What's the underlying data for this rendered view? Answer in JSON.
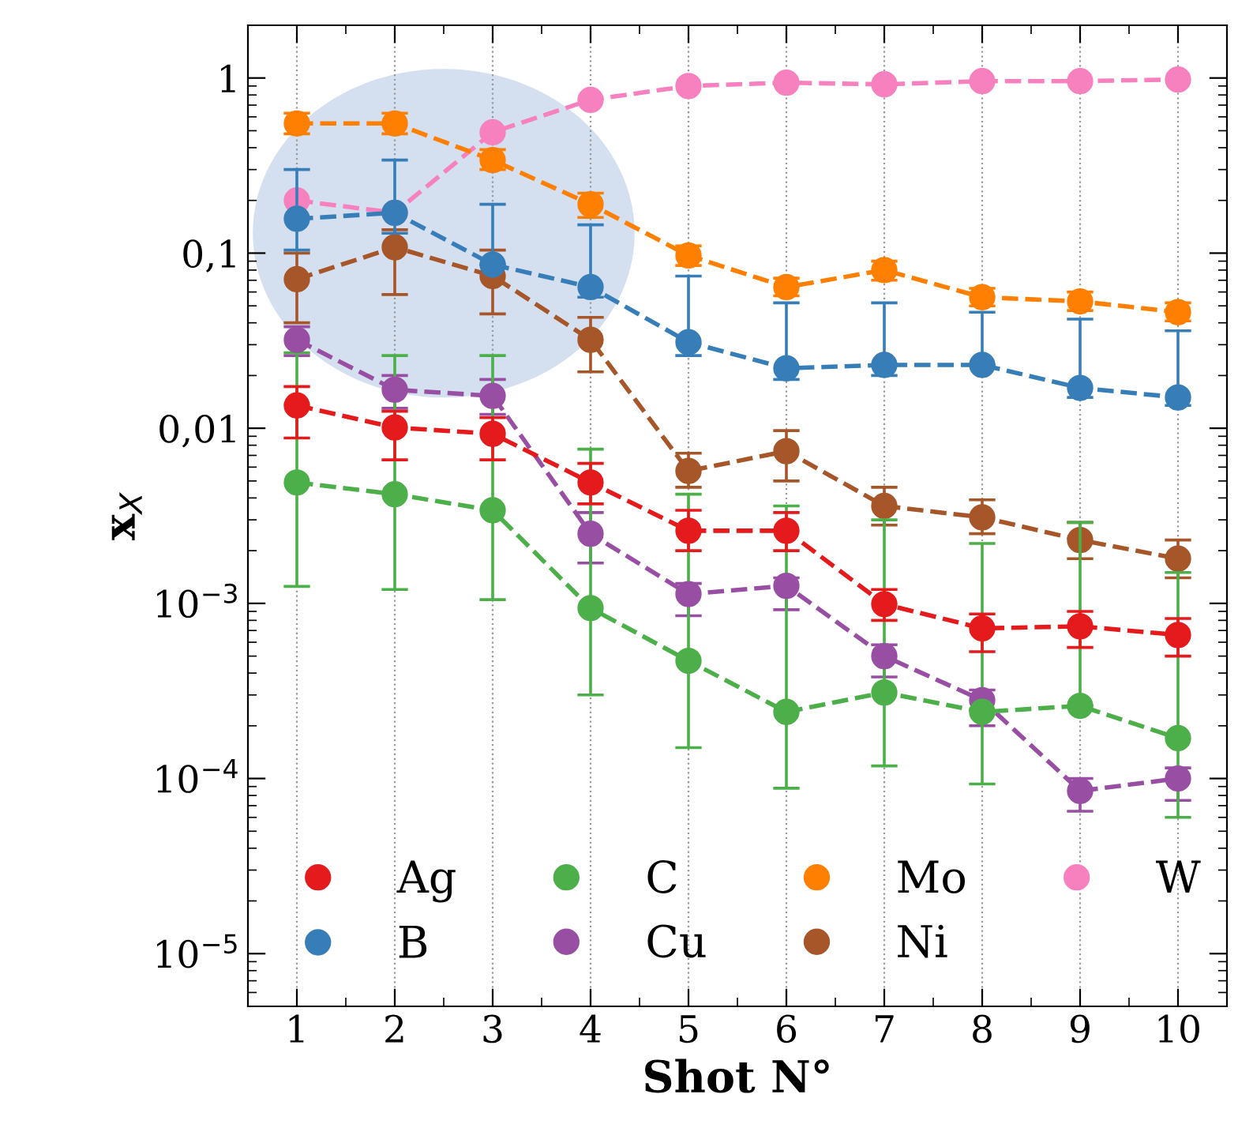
{
  "chart_data": {
    "type": "line",
    "xlabel": "Shot N°",
    "ylabel": "x$_{X}$",
    "x": [
      1,
      2,
      3,
      4,
      5,
      6,
      7,
      8,
      9,
      10
    ],
    "xlim": [
      0.5,
      10.5
    ],
    "xticks": [
      1,
      2,
      3,
      4,
      5,
      6,
      7,
      8,
      9,
      10
    ],
    "ylim": [
      5e-06,
      2
    ],
    "yticks": [
      {
        "value": 1,
        "label": "1"
      },
      {
        "value": 0.1,
        "label": "0,1"
      },
      {
        "value": 0.01,
        "label": "0,01"
      },
      {
        "value": 0.001,
        "label": "10$^{−3}$"
      },
      {
        "value": 0.0001,
        "label": "10$^{−4}$"
      },
      {
        "value": 1e-05,
        "label": "10$^{−5}$"
      }
    ],
    "log": "y",
    "grid": "x",
    "legend": "bottom",
    "marker": "circle",
    "line_style": "dashed",
    "series": [
      {
        "name": "Ag",
        "color": "#e41a1c",
        "values": [
          0.0135,
          0.0101,
          0.0093,
          0.0049,
          0.0026,
          0.0026,
          0.00099,
          0.00072,
          0.00074,
          0.00066
        ],
        "errors": [
          [
            0.0088,
            0.0173
          ],
          [
            0.0066,
            0.0125
          ],
          [
            0.0066,
            0.0115
          ],
          [
            0.0037,
            0.0063
          ],
          [
            0.002,
            0.0034
          ],
          [
            0.002,
            0.0033
          ],
          [
            0.0008,
            0.0012
          ],
          [
            0.00053,
            0.00087
          ],
          [
            0.00056,
            0.0009
          ],
          [
            0.0005,
            0.00082
          ]
        ]
      },
      {
        "name": "B",
        "color": "#377eb8",
        "values": [
          0.157,
          0.17,
          0.086,
          0.064,
          0.031,
          0.022,
          0.023,
          0.023,
          0.017,
          0.015
        ],
        "errors": [
          [
            0.104,
            0.3
          ],
          [
            0.13,
            0.34
          ],
          [
            0.086,
            0.19
          ],
          [
            0.056,
            0.145
          ],
          [
            0.026,
            0.074
          ],
          [
            0.019,
            0.052
          ],
          [
            0.02,
            0.052
          ],
          [
            0.023,
            0.046
          ],
          [
            0.015,
            0.042
          ],
          [
            0.0135,
            0.036
          ]
        ]
      },
      {
        "name": "C",
        "color": "#4daf4a",
        "values": [
          0.0049,
          0.0042,
          0.0034,
          0.00094,
          0.00047,
          0.00024,
          0.00031,
          0.00024,
          0.00026,
          0.00017
        ],
        "errors": [
          [
            0.00125,
            0.027
          ],
          [
            0.0012,
            0.026
          ],
          [
            0.00105,
            0.026
          ],
          [
            0.0003,
            0.0076
          ],
          [
            0.00015,
            0.0042
          ],
          [
            8.8e-05,
            0.0036
          ],
          [
            0.000118,
            0.003
          ],
          [
            9.3e-05,
            0.0022
          ],
          [
            0.00026,
            0.0029
          ],
          [
            6e-05,
            0.0015
          ]
        ]
      },
      {
        "name": "Cu",
        "color": "#984ea3",
        "values": [
          0.032,
          0.0166,
          0.0153,
          0.0025,
          0.00113,
          0.00126,
          0.0005,
          0.00028,
          8.5e-05,
          0.0001
        ],
        "errors": [
          [
            0.026,
            0.038
          ],
          [
            0.013,
            0.02
          ],
          [
            0.012,
            0.019
          ],
          [
            0.0017,
            0.0033
          ],
          [
            0.00085,
            0.0013
          ],
          [
            0.00092,
            0.0014
          ],
          [
            0.00038,
            0.00058
          ],
          [
            0.0002,
            0.00032
          ],
          [
            6.5e-05,
            0.0001
          ],
          [
            7.5e-05,
            0.000115
          ]
        ]
      },
      {
        "name": "Mo",
        "color": "#ff7f00",
        "values": [
          0.55,
          0.55,
          0.34,
          0.19,
          0.097,
          0.064,
          0.08,
          0.056,
          0.053,
          0.046
        ],
        "errors": [
          [
            0.48,
            0.63
          ],
          [
            0.48,
            0.63
          ],
          [
            0.3,
            0.39
          ],
          [
            0.16,
            0.22
          ],
          [
            0.085,
            0.11
          ],
          [
            0.057,
            0.072
          ],
          [
            0.07,
            0.09
          ],
          [
            0.05,
            0.063
          ],
          [
            0.047,
            0.06
          ],
          [
            0.041,
            0.052
          ]
        ]
      },
      {
        "name": "Ni",
        "color": "#a65628",
        "values": [
          0.071,
          0.108,
          0.074,
          0.032,
          0.0057,
          0.0074,
          0.0036,
          0.0031,
          0.0023,
          0.0018
        ],
        "errors": [
          [
            0.04,
            0.1
          ],
          [
            0.058,
            0.136
          ],
          [
            0.045,
            0.104
          ],
          [
            0.021,
            0.043
          ],
          [
            0.0046,
            0.0072
          ],
          [
            0.005,
            0.0097
          ],
          [
            0.0028,
            0.0046
          ],
          [
            0.0025,
            0.0039
          ],
          [
            0.0018,
            0.0029
          ],
          [
            0.0014,
            0.0023
          ]
        ]
      },
      {
        "name": "W",
        "color": "#f781bf",
        "values": [
          0.2,
          0.17,
          0.49,
          0.75,
          0.9,
          0.94,
          0.92,
          0.96,
          0.96,
          0.98
        ]
      }
    ]
  }
}
